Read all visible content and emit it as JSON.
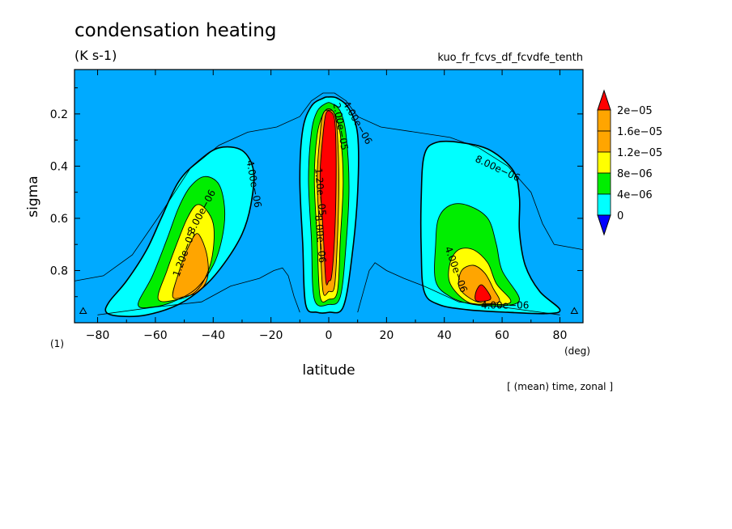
{
  "figure": {
    "title": "condensation heating",
    "units": "(K s-1)",
    "run_name": "kuo_fr_fcvs_df_fcvdfe_tenth",
    "panel_number": "(1)",
    "x_unit": "(deg)",
    "averaging_note": "[ (mean) time, zonal ]"
  },
  "chart_data": {
    "type": "heatmap",
    "xlabel": "latitude",
    "ylabel": "sigma",
    "xlim": [
      -88,
      88
    ],
    "ylim": [
      1.0,
      0.03
    ],
    "y_inverted": true,
    "x_ticks": [
      -80,
      -60,
      -40,
      -20,
      0,
      20,
      40,
      60,
      80
    ],
    "x_tick_labels": [
      "−80",
      "−60",
      "−40",
      "−20",
      "0",
      "20",
      "40",
      "60",
      "80"
    ],
    "y_ticks": [
      0.2,
      0.4,
      0.6,
      0.8
    ],
    "y_tick_labels": [
      "0.2",
      "0.4",
      "0.6",
      "0.8"
    ],
    "grid": false,
    "colorbar": {
      "placement": "right",
      "levels": [
        0,
        4e-06,
        8e-06,
        1.2e-05,
        1.6e-05,
        2e-05
      ],
      "labels": [
        "0",
        "4e−06",
        "8e−06",
        "1.2e−05",
        "1.6e−05",
        "2e−05"
      ],
      "colors": [
        "#00aaff",
        "#00ffff",
        "#00ee00",
        "#ffff00",
        "#ffa500",
        "#ff0000"
      ],
      "under_color": "#0000ff",
      "over_color": "#ff0000",
      "extend": "both"
    },
    "features": [
      {
        "name": "southern midlatitude maximum",
        "rings": [
          {
            "level": 4e-06,
            "pts": [
              [
                -77,
                0.96
              ],
              [
                -76,
                0.92
              ],
              [
                -70,
                0.84
              ],
              [
                -63,
                0.72
              ],
              [
                -58,
                0.6
              ],
              [
                -52,
                0.46
              ],
              [
                -45,
                0.38
              ],
              [
                -38,
                0.33
              ],
              [
                -30,
                0.34
              ],
              [
                -26,
                0.42
              ],
              [
                -27,
                0.55
              ],
              [
                -30,
                0.66
              ],
              [
                -36,
                0.77
              ],
              [
                -43,
                0.86
              ],
              [
                -52,
                0.93
              ],
              [
                -63,
                0.97
              ],
              [
                -72,
                0.975
              ]
            ]
          },
          {
            "level": 8e-06,
            "pts": [
              [
                -66,
                0.93
              ],
              [
                -61,
                0.82
              ],
              [
                -56,
                0.68
              ],
              [
                -52,
                0.56
              ],
              [
                -48,
                0.48
              ],
              [
                -43,
                0.44
              ],
              [
                -38,
                0.47
              ],
              [
                -36,
                0.57
              ],
              [
                -37,
                0.68
              ],
              [
                -40,
                0.78
              ],
              [
                -46,
                0.87
              ],
              [
                -54,
                0.92
              ],
              [
                -61,
                0.94
              ]
            ]
          },
          {
            "level": 1.2e-05,
            "pts": [
              [
                -59,
                0.91
              ],
              [
                -56,
                0.8
              ],
              [
                -52,
                0.68
              ],
              [
                -49,
                0.6
              ],
              [
                -46,
                0.55
              ],
              [
                -43,
                0.56
              ],
              [
                -40,
                0.62
              ],
              [
                -40,
                0.72
              ],
              [
                -42,
                0.81
              ],
              [
                -46,
                0.88
              ],
              [
                -52,
                0.91
              ]
            ]
          },
          {
            "level": 1.6e-05,
            "pts": [
              [
                -54,
                0.9
              ],
              [
                -52,
                0.81
              ],
              [
                -49,
                0.72
              ],
              [
                -46,
                0.66
              ],
              [
                -44,
                0.68
              ],
              [
                -42,
                0.75
              ],
              [
                -42,
                0.83
              ],
              [
                -45,
                0.88
              ],
              [
                -50,
                0.9
              ]
            ]
          }
        ],
        "label_values": [
          "1.20e−05",
          "8.00e−06",
          "4.00e−06"
        ]
      },
      {
        "name": "equatorial maximum",
        "rings": [
          {
            "level": 4e-06,
            "pts": [
              [
                -8,
                0.93
              ],
              [
                -9,
                0.7
              ],
              [
                -10,
                0.45
              ],
              [
                -9,
                0.26
              ],
              [
                -6,
                0.17
              ],
              [
                -2,
                0.14
              ],
              [
                0,
                0.135
              ],
              [
                3,
                0.14
              ],
              [
                7,
                0.18
              ],
              [
                10,
                0.28
              ],
              [
                10,
                0.5
              ],
              [
                8,
                0.75
              ],
              [
                5,
                0.94
              ],
              [
                0,
                0.96
              ],
              [
                -4,
                0.96
              ]
            ]
          },
          {
            "level": 8e-06,
            "pts": [
              [
                -5,
                0.91
              ],
              [
                -6,
                0.68
              ],
              [
                -7,
                0.45
              ],
              [
                -6,
                0.27
              ],
              [
                -4,
                0.19
              ],
              [
                -1,
                0.16
              ],
              [
                1,
                0.16
              ],
              [
                4,
                0.19
              ],
              [
                6,
                0.28
              ],
              [
                7,
                0.48
              ],
              [
                6,
                0.7
              ],
              [
                4,
                0.9
              ],
              [
                0,
                0.93
              ]
            ]
          },
          {
            "level": 1.2e-05,
            "pts": [
              [
                -3,
                0.9
              ],
              [
                -4,
                0.68
              ],
              [
                -5,
                0.45
              ],
              [
                -4,
                0.28
              ],
              [
                -2,
                0.2
              ],
              [
                0,
                0.18
              ],
              [
                2,
                0.2
              ],
              [
                4,
                0.28
              ],
              [
                5,
                0.46
              ],
              [
                4,
                0.68
              ],
              [
                3,
                0.88
              ],
              [
                0,
                0.91
              ]
            ]
          },
          {
            "level": 1.6e-05,
            "pts": [
              [
                -2,
                0.88
              ],
              [
                -3,
                0.68
              ],
              [
                -4,
                0.45
              ],
              [
                -3,
                0.28
              ],
              [
                -2,
                0.2
              ],
              [
                0,
                0.185
              ],
              [
                2,
                0.2
              ],
              [
                3,
                0.28
              ],
              [
                3.5,
                0.46
              ],
              [
                3,
                0.68
              ],
              [
                2,
                0.86
              ],
              [
                0,
                0.88
              ]
            ]
          },
          {
            "level": 2e-05,
            "pts": [
              [
                -1,
                0.84
              ],
              [
                -2,
                0.64
              ],
              [
                -3,
                0.44
              ],
              [
                -2,
                0.28
              ],
              [
                -1,
                0.2
              ],
              [
                0.5,
                0.19
              ],
              [
                2,
                0.22
              ],
              [
                2.5,
                0.32
              ],
              [
                2.5,
                0.5
              ],
              [
                2,
                0.68
              ],
              [
                1,
                0.82
              ],
              [
                0,
                0.84
              ]
            ]
          }
        ],
        "label_values": [
          "2.00e−05",
          "1.20e−05",
          "8.00e−06",
          "4.00e−06"
        ]
      },
      {
        "name": "northern midlatitude maximum",
        "rings": [
          {
            "level": 4e-06,
            "pts": [
              [
                33,
                0.88
              ],
              [
                32,
                0.72
              ],
              [
                32,
                0.52
              ],
              [
                33,
                0.36
              ],
              [
                37,
                0.31
              ],
              [
                46,
                0.31
              ],
              [
                56,
                0.34
              ],
              [
                64,
                0.42
              ],
              [
                66,
                0.52
              ],
              [
                66,
                0.65
              ],
              [
                68,
                0.78
              ],
              [
                73,
                0.88
              ],
              [
                80,
                0.95
              ],
              [
                75,
                0.965
              ],
              [
                62,
                0.96
              ],
              [
                48,
                0.95
              ],
              [
                38,
                0.93
              ]
            ]
          },
          {
            "level": 8e-06,
            "pts": [
              [
                37,
                0.84
              ],
              [
                37,
                0.7
              ],
              [
                38,
                0.6
              ],
              [
                42,
                0.55
              ],
              [
                48,
                0.55
              ],
              [
                55,
                0.6
              ],
              [
                58,
                0.7
              ],
              [
                60,
                0.8
              ],
              [
                66,
                0.91
              ],
              [
                60,
                0.935
              ],
              [
                50,
                0.93
              ],
              [
                42,
                0.9
              ]
            ]
          },
          {
            "level": 1.2e-05,
            "pts": [
              [
                42,
                0.85
              ],
              [
                42,
                0.77
              ],
              [
                45,
                0.72
              ],
              [
                50,
                0.72
              ],
              [
                55,
                0.77
              ],
              [
                58,
                0.85
              ],
              [
                63,
                0.92
              ],
              [
                55,
                0.93
              ],
              [
                48,
                0.92
              ]
            ]
          },
          {
            "level": 1.6e-05,
            "pts": [
              [
                45,
                0.86
              ],
              [
                46,
                0.8
              ],
              [
                50,
                0.78
              ],
              [
                54,
                0.81
              ],
              [
                57,
                0.87
              ],
              [
                59,
                0.92
              ],
              [
                53,
                0.925
              ],
              [
                48,
                0.9
              ]
            ]
          },
          {
            "level": 2e-05,
            "pts": [
              [
                51,
                0.88
              ],
              [
                53,
                0.855
              ],
              [
                56,
                0.9
              ],
              [
                55,
                0.915
              ],
              [
                51,
                0.915
              ]
            ]
          }
        ],
        "label_values": [
          "8.00e−06",
          "4.00e−06",
          "4.00e−06"
        ]
      }
    ]
  }
}
